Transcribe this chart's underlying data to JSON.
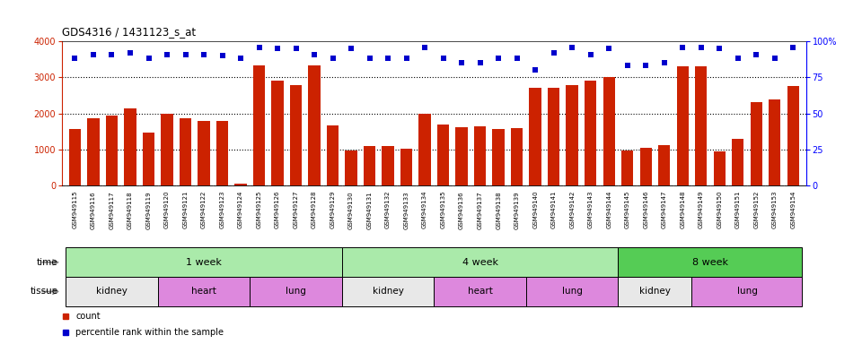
{
  "title": "GDS4316 / 1431123_s_at",
  "samples": [
    "GSM949115",
    "GSM949116",
    "GSM949117",
    "GSM949118",
    "GSM949119",
    "GSM949120",
    "GSM949121",
    "GSM949122",
    "GSM949123",
    "GSM949124",
    "GSM949125",
    "GSM949126",
    "GSM949127",
    "GSM949128",
    "GSM949129",
    "GSM949130",
    "GSM949131",
    "GSM949132",
    "GSM949133",
    "GSM949134",
    "GSM949135",
    "GSM949136",
    "GSM949137",
    "GSM949138",
    "GSM949139",
    "GSM949140",
    "GSM949141",
    "GSM949142",
    "GSM949143",
    "GSM949144",
    "GSM949145",
    "GSM949146",
    "GSM949147",
    "GSM949148",
    "GSM949149",
    "GSM949150",
    "GSM949151",
    "GSM949152",
    "GSM949153",
    "GSM949154"
  ],
  "counts": [
    1580,
    1860,
    1950,
    2150,
    1460,
    2000,
    1870,
    1790,
    1800,
    60,
    3340,
    2900,
    2790,
    3340,
    1680,
    980,
    1110,
    1100,
    1020,
    2000,
    1700,
    1610,
    1640,
    1580,
    1600,
    2720,
    2720,
    2790,
    2900,
    3000,
    980,
    1040,
    1120,
    3310,
    3310,
    960,
    1290,
    2310,
    2400,
    2750
  ],
  "percentile": [
    88,
    91,
    91,
    92,
    88,
    91,
    91,
    91,
    90,
    88,
    96,
    95,
    95,
    91,
    88,
    95,
    88,
    88,
    88,
    96,
    88,
    85,
    85,
    88,
    88,
    80,
    92,
    96,
    91,
    95,
    83,
    83,
    85,
    96,
    96,
    95,
    88,
    91,
    88,
    96
  ],
  "bar_color": "#cc2200",
  "dot_color": "#0000cc",
  "ylim_left": [
    0,
    4000
  ],
  "ylim_right": [
    0,
    100
  ],
  "yticks_left": [
    0,
    1000,
    2000,
    3000,
    4000
  ],
  "yticks_right": [
    0,
    25,
    50,
    75,
    100
  ],
  "ytick_right_labels": [
    "0",
    "25",
    "50",
    "75",
    "100%"
  ],
  "time_groups": [
    {
      "label": "1 week",
      "start": 0,
      "end": 14,
      "color": "#aaeaaa"
    },
    {
      "label": "4 week",
      "start": 15,
      "end": 29,
      "color": "#aaeaaa"
    },
    {
      "label": "8 week",
      "start": 30,
      "end": 39,
      "color": "#55cc55"
    }
  ],
  "tissue_groups": [
    {
      "label": "kidney",
      "start": 0,
      "end": 4,
      "color": "#e8e8e8"
    },
    {
      "label": "heart",
      "start": 5,
      "end": 9,
      "color": "#dd88dd"
    },
    {
      "label": "lung",
      "start": 10,
      "end": 14,
      "color": "#dd88dd"
    },
    {
      "label": "kidney",
      "start": 15,
      "end": 19,
      "color": "#e8e8e8"
    },
    {
      "label": "heart",
      "start": 20,
      "end": 24,
      "color": "#dd88dd"
    },
    {
      "label": "lung",
      "start": 25,
      "end": 29,
      "color": "#dd88dd"
    },
    {
      "label": "kidney",
      "start": 30,
      "end": 33,
      "color": "#e8e8e8"
    },
    {
      "label": "lung",
      "start": 34,
      "end": 39,
      "color": "#dd88dd"
    }
  ],
  "xticklabel_bg": "#d8d8d8",
  "bg_color": "#ffffff",
  "label_time": "time",
  "label_tissue": "tissue",
  "legend_count": "count",
  "legend_pct": "percentile rank within the sample"
}
